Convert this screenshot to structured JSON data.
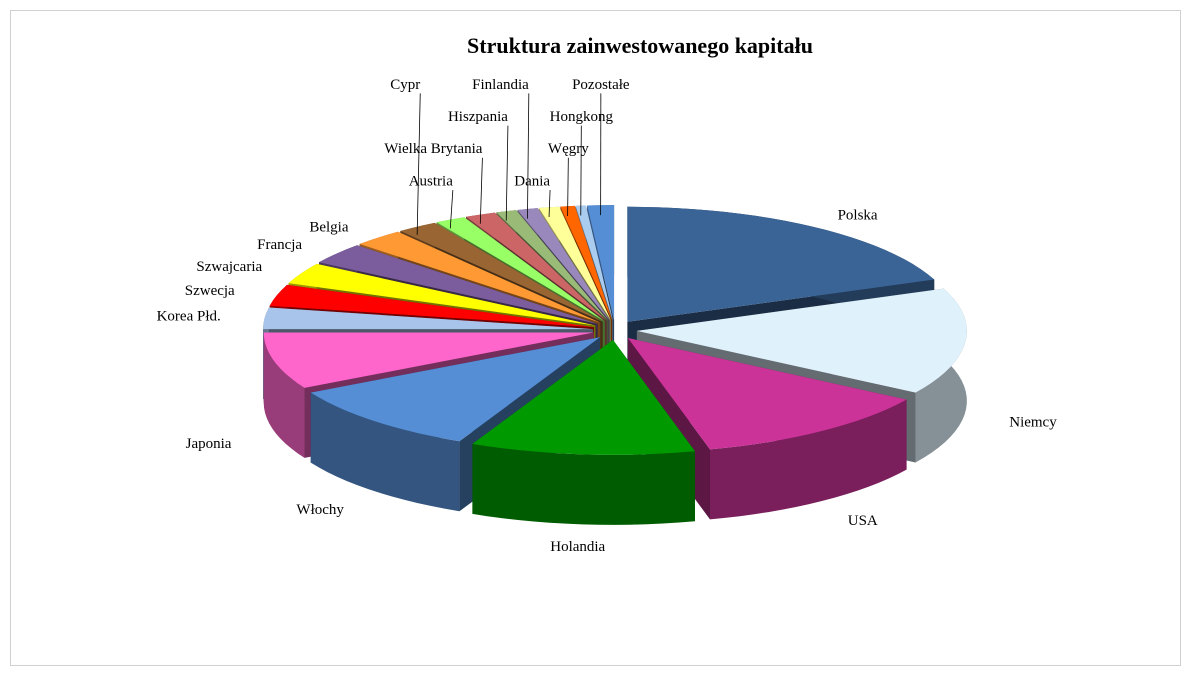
{
  "chart_data": {
    "type": "pie",
    "title": "Struktura zainwestowanego kapitału",
    "categories": [
      "Polska",
      "Niemcy",
      "USA",
      "Holandia",
      "Włochy",
      "Japonia",
      "Korea Płd.",
      "Szwecja",
      "Szwajcaria",
      "Francja",
      "Belgia",
      "Cypr",
      "Austria",
      "Wielka Brytania",
      "Hiszpania",
      "Finlandia",
      "Dania",
      "Węgry",
      "Hongkong",
      "Pozostałe"
    ],
    "values": [
      19,
      15,
      12,
      11,
      10,
      8,
      3,
      3,
      3,
      3,
      2.5,
      2,
      1.5,
      1.5,
      1,
      1,
      1,
      0.7,
      0.5,
      1.3
    ],
    "colors": [
      "#3b6496",
      "#dff1fb",
      "#cc3399",
      "#009900",
      "#558ed5",
      "#ff66cc",
      "#a9c4eb",
      "#ff0000",
      "#ffff00",
      "#7b5c9c",
      "#ff9933",
      "#996633",
      "#99ff66",
      "#cc6666",
      "#99bb77",
      "#9988bb",
      "#ffff99",
      "#ff6600",
      "#aaccee",
      "#558ed5"
    ]
  }
}
